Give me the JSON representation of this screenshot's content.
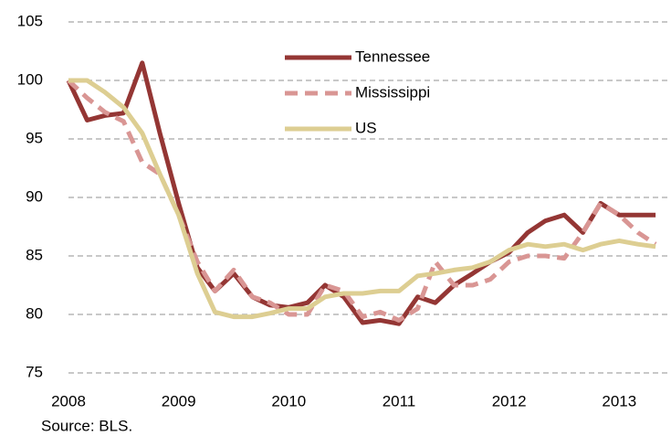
{
  "chart_data": {
    "type": "line",
    "x": [
      2008,
      2008.17,
      2008.33,
      2008.5,
      2008.67,
      2008.83,
      2009,
      2009.17,
      2009.33,
      2009.5,
      2009.67,
      2009.83,
      2010,
      2010.17,
      2010.33,
      2010.5,
      2010.67,
      2010.83,
      2011,
      2011.17,
      2011.33,
      2011.5,
      2011.67,
      2011.83,
      2012,
      2012.17,
      2012.33,
      2012.5,
      2012.67,
      2012.83,
      2013,
      2013.17,
      2013.33
    ],
    "series": [
      {
        "name": "Tennessee",
        "color": "#943634",
        "style": "solid",
        "values": [
          100,
          96.6,
          97,
          97.2,
          101.5,
          95.5,
          89.5,
          84,
          82,
          83.5,
          81.5,
          80.8,
          80.6,
          81,
          82.5,
          81.5,
          79.3,
          79.5,
          79.2,
          81.5,
          81,
          82.5,
          83.5,
          84.5,
          85.3,
          87,
          88,
          88.5,
          87,
          89.5,
          88.5,
          88.5,
          88.5
        ]
      },
      {
        "name": "Mississippi",
        "color": "#d99694",
        "style": "dashed",
        "values": [
          100,
          98.5,
          97.3,
          96.5,
          93,
          92,
          88.5,
          84.5,
          82,
          83.8,
          81.5,
          81,
          80,
          80,
          82.5,
          82,
          79.8,
          80.2,
          79.5,
          80.5,
          84.5,
          82.5,
          82.5,
          83,
          84.5,
          85,
          85,
          84.8,
          87,
          89.5,
          88.5,
          87,
          86
        ]
      },
      {
        "name": "US",
        "color": "#ddce92",
        "style": "solid",
        "values": [
          100,
          100,
          99,
          97.7,
          95.5,
          92,
          88.5,
          83.5,
          80.2,
          79.8,
          79.8,
          80.1,
          80.5,
          80.5,
          81.5,
          81.8,
          81.8,
          82,
          82,
          83.3,
          83.5,
          83.8,
          84,
          84.5,
          85.5,
          86,
          85.8,
          86,
          85.5,
          86,
          86.3,
          86,
          85.8
        ]
      }
    ],
    "xlim": [
      2008,
      2013.47
    ],
    "xticks": [
      2008,
      2009,
      2010,
      2011,
      2012,
      2013
    ],
    "ylim": [
      75,
      105
    ],
    "yticks": [
      75,
      80,
      85,
      90,
      95,
      100,
      105
    ],
    "grid": true,
    "legend": "top-center",
    "source": "Source: BLS."
  }
}
